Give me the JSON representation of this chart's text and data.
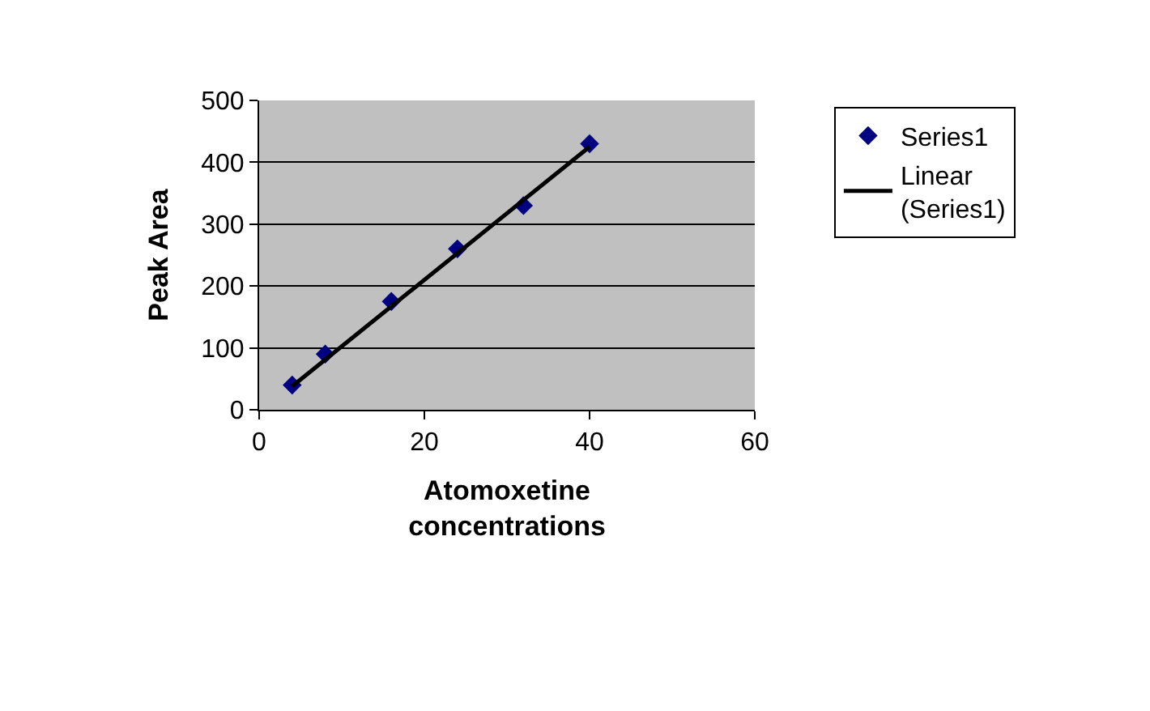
{
  "chart_data": {
    "type": "scatter",
    "xlabel": "Atomoxetine concentrations",
    "ylabel": "Peak Area",
    "x": [
      4,
      8,
      16,
      24,
      32,
      40
    ],
    "series": [
      {
        "name": "Series1",
        "color": "#000080",
        "values": [
          40,
          90,
          175,
          260,
          330,
          430
        ],
        "marker": "diamond"
      },
      {
        "name": "Linear (Series1)",
        "type": "line",
        "color": "#000000",
        "x": [
          4,
          40
        ],
        "values": [
          38,
          425
        ],
        "marker": "none",
        "line_style": "solid"
      }
    ],
    "xlim": [
      0,
      60
    ],
    "xticks": [
      0,
      20,
      40,
      60
    ],
    "ylim": [
      0,
      500
    ],
    "yticks": [
      0,
      100,
      200,
      300,
      400,
      500
    ],
    "grid": "y",
    "legend": "right"
  }
}
